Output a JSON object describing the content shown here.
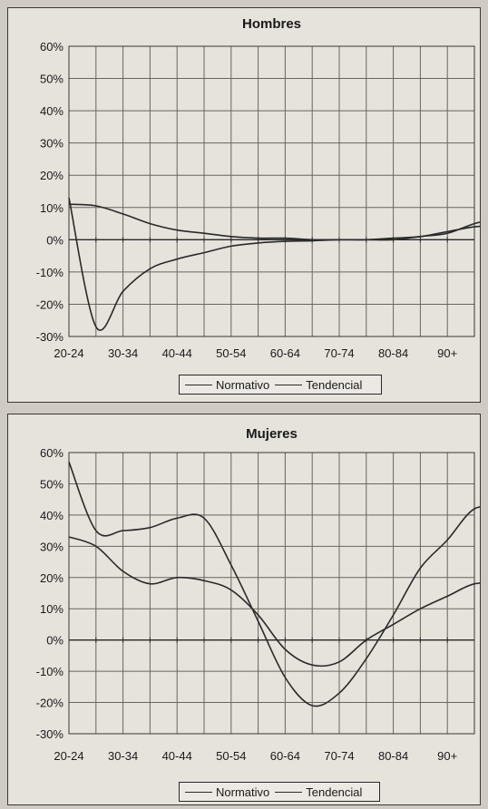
{
  "chart_data": [
    {
      "type": "line",
      "title": "Hombres",
      "categories": [
        "20-24",
        "30-34",
        "40-44",
        "50-54",
        "60-64",
        "70-74",
        "80-84",
        "90+"
      ],
      "ylim": [
        -30,
        60
      ],
      "yticks": [
        "60%",
        "50%",
        "40%",
        "30%",
        "20%",
        "10%",
        "0%",
        "-10%",
        "-20%",
        "-30%"
      ],
      "grid": true,
      "legend_position": "bottom",
      "x": [
        1,
        1.5,
        2,
        2.5,
        3,
        3.5,
        4,
        4.5,
        5,
        5.5,
        6,
        6.5,
        7,
        7.5,
        8,
        8.5,
        9
      ],
      "series": [
        {
          "name": "Normativo",
          "values": [
            11,
            10.5,
            8,
            5,
            3,
            2,
            1,
            0.5,
            0.5,
            0,
            0,
            0,
            0,
            1,
            2,
            5,
            7
          ]
        },
        {
          "name": "Tendencial",
          "values": [
            13,
            -27,
            -16,
            -9,
            -6,
            -4,
            -2,
            -1,
            -0.5,
            -0.3,
            0,
            0,
            0.5,
            1,
            2.5,
            4,
            4.5
          ]
        }
      ]
    },
    {
      "type": "line",
      "title": "Mujeres",
      "categories": [
        "20-24",
        "30-34",
        "40-44",
        "50-54",
        "60-64",
        "70-74",
        "80-84",
        "90+"
      ],
      "ylim": [
        -30,
        60
      ],
      "yticks": [
        "60%",
        "50%",
        "40%",
        "30%",
        "20%",
        "10%",
        "0%",
        "-10%",
        "-20%",
        "-30%"
      ],
      "grid": true,
      "legend_position": "bottom",
      "x": [
        1,
        1.5,
        2,
        2.5,
        3,
        3.5,
        4,
        4.5,
        5,
        5.5,
        6,
        6.5,
        7,
        7.5,
        8,
        8.5,
        9
      ],
      "series": [
        {
          "name": "Normativo",
          "values": [
            57,
            35,
            35,
            36,
            39,
            39,
            24,
            6,
            -12,
            -21,
            -17,
            -6,
            8,
            23,
            32,
            42,
            42
          ]
        },
        {
          "name": "Tendencial",
          "values": [
            33,
            30,
            22,
            18,
            20,
            19,
            16,
            8,
            -3,
            -8,
            -7,
            0,
            5,
            10,
            14,
            18,
            18
          ]
        }
      ]
    }
  ]
}
